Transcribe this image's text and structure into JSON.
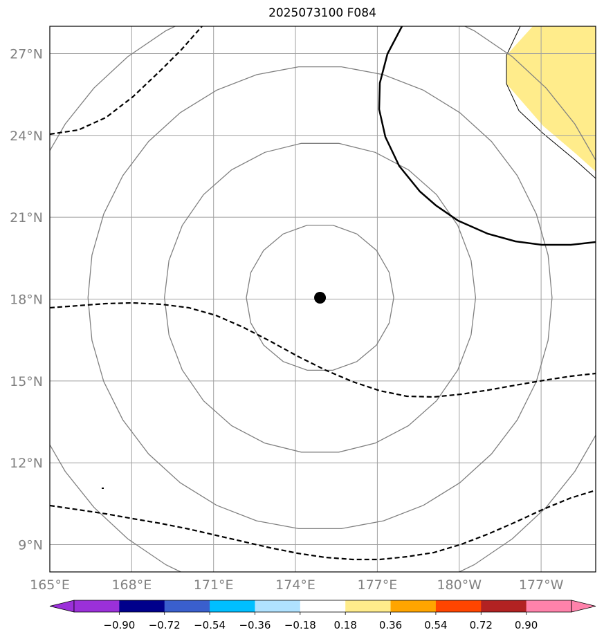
{
  "title": "2025073100 F084",
  "map": {
    "lon_range": [
      165,
      185
    ],
    "lat_range": [
      8,
      28
    ],
    "lat_ticks": [
      {
        "value": 27,
        "label": "27°N"
      },
      {
        "value": 24,
        "label": "24°N"
      },
      {
        "value": 21,
        "label": "21°N"
      },
      {
        "value": 18,
        "label": "18°N"
      },
      {
        "value": 15,
        "label": "15°N"
      },
      {
        "value": 12,
        "label": "12°N"
      },
      {
        "value": 9,
        "label": "9°N"
      }
    ],
    "lon_ticks": [
      {
        "value": 165,
        "label": "165°E"
      },
      {
        "value": 168,
        "label": "168°E"
      },
      {
        "value": 171,
        "label": "171°E"
      },
      {
        "value": 174,
        "label": "174°E"
      },
      {
        "value": 177,
        "label": "177°E"
      },
      {
        "value": 180,
        "label": "180°W"
      },
      {
        "value": 183,
        "label": "177°W"
      }
    ],
    "center_marker": {
      "lon": 174.9,
      "lat": 18.05
    },
    "range_rings_deg": [
      2.7,
      5.7,
      8.5,
      11.3
    ],
    "gridline_color": "#a0a0a0",
    "ring_color": "#808080"
  },
  "colorbar": {
    "colors": [
      "#9b30d9",
      "#00008b",
      "#3a5fcd",
      "#00bfff",
      "#b0e2ff",
      "#ffffff",
      "#ffec8b",
      "#ffa500",
      "#ff4500",
      "#b22222",
      "#ff82ab"
    ],
    "extend_min_color": "#9b30d9",
    "extend_max_color": "#ff82ab",
    "tick_labels": [
      "−0.90",
      "−0.72",
      "−0.54",
      "−0.36",
      "−0.18",
      "0.18",
      "0.36",
      "0.54",
      "0.72",
      "0.90"
    ]
  },
  "fill_color_shaded": "#ffec8b"
}
